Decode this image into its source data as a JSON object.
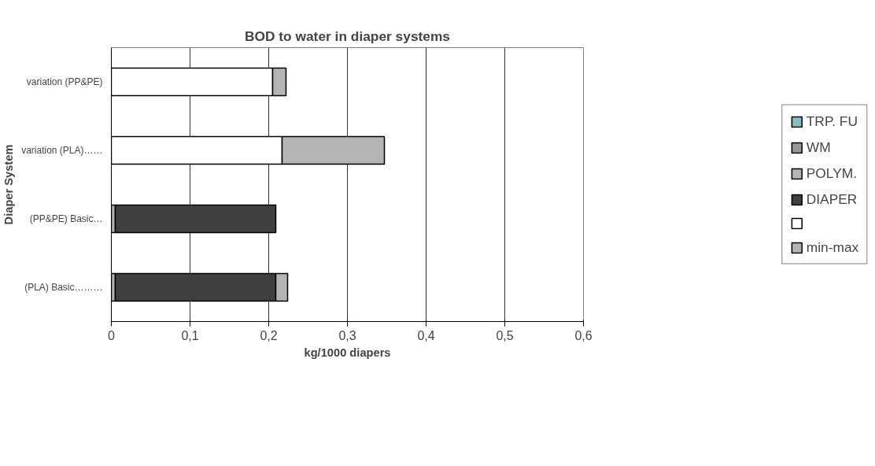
{
  "chart_data": {
    "type": "bar",
    "orientation": "horizontal",
    "stacked": true,
    "title": "BOD to water in diaper systems",
    "xlabel": "kg/1000 diapers",
    "ylabel": "Diaper System",
    "categories": [
      "variation (PP&PE)",
      "variation (PLA)……",
      "(PP&PE) Basic…",
      "(PLA) Basic………"
    ],
    "series": [
      {
        "name": "TRP. FU",
        "color": "#80c0c0",
        "values": [
          0,
          0,
          0,
          0
        ]
      },
      {
        "name": "WM",
        "color": "#969696",
        "values": [
          0,
          0,
          0,
          0
        ]
      },
      {
        "name": "POLYM.",
        "color": "#b4b4b4",
        "values": [
          0,
          0,
          0.005,
          0.005
        ]
      },
      {
        "name": "DIAPER",
        "color": "#404040",
        "values": [
          0,
          0,
          0.204,
          0.204
        ]
      },
      {
        "color": "#ffffff",
        "values": [
          0.205,
          0.217,
          0,
          0
        ]
      },
      {
        "name": "min-max",
        "color": "#b4b4b4",
        "values": [
          0.017,
          0.13,
          0,
          0.015
        ]
      }
    ],
    "xlim": [
      0,
      0.6
    ],
    "xticks": [
      {
        "value": 0,
        "label": "0"
      },
      {
        "value": 0.1,
        "label": "0,1"
      },
      {
        "value": 0.2,
        "label": "0,2"
      },
      {
        "value": 0.3,
        "label": "0,3"
      },
      {
        "value": 0.4,
        "label": "0,4"
      },
      {
        "value": 0.5,
        "label": "0,5"
      },
      {
        "value": 0.6,
        "label": "0,6"
      }
    ],
    "grid": "x",
    "legend": "right"
  }
}
